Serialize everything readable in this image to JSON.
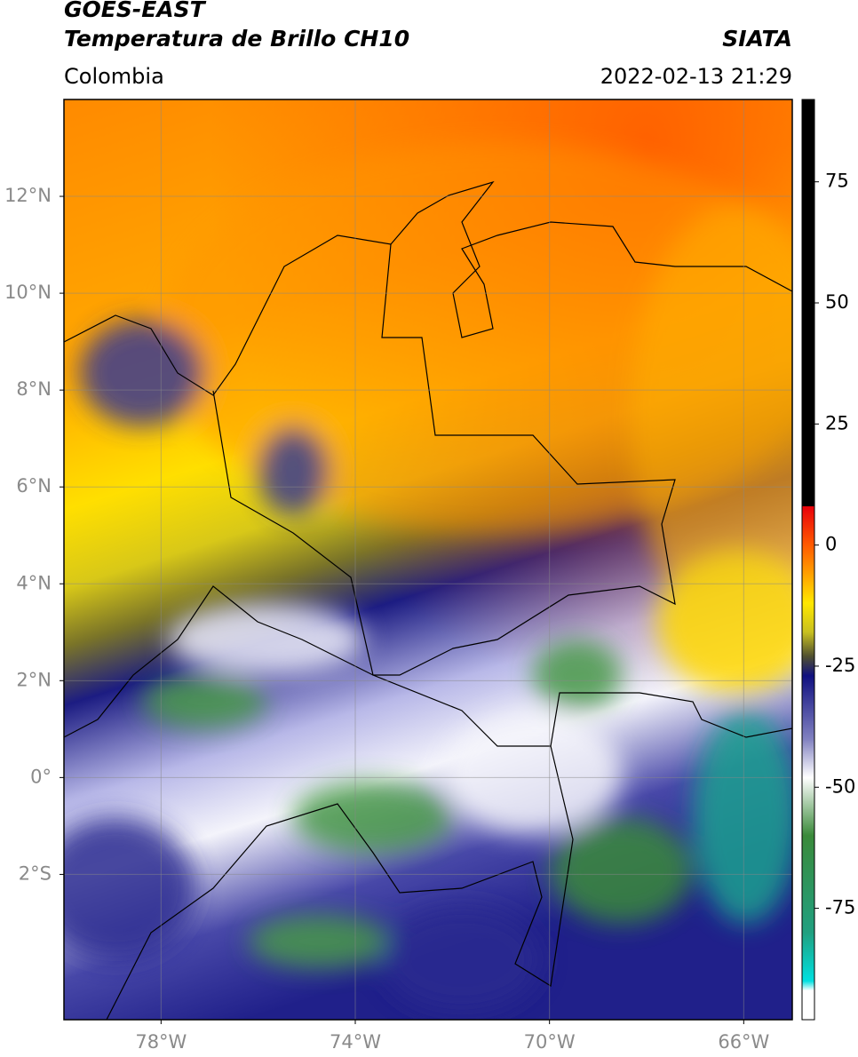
{
  "header": {
    "title": "GOES-EAST",
    "subtitle": "Temperatura de Brillo CH10",
    "source": "SIATA",
    "region": "Colombia",
    "datetime": "2022-02-13 21:29"
  },
  "map": {
    "xlim": [
      -80,
      -65
    ],
    "ylim": [
      -5,
      14
    ],
    "grid": true,
    "yticks": [
      {
        "value": 12,
        "label": "12°N"
      },
      {
        "value": 10,
        "label": "10°N"
      },
      {
        "value": 8,
        "label": "8°N"
      },
      {
        "value": 6,
        "label": "6°N"
      },
      {
        "value": 4,
        "label": "4°N"
      },
      {
        "value": 2,
        "label": "2°N"
      },
      {
        "value": 0,
        "label": "0°"
      },
      {
        "value": -2,
        "label": "2°S"
      }
    ],
    "xticks": [
      {
        "value": -78,
        "label": "78°W"
      },
      {
        "value": -74,
        "label": "74°W"
      },
      {
        "value": -70,
        "label": "70°W"
      },
      {
        "value": -66,
        "label": "66°W"
      }
    ]
  },
  "colorbar": {
    "lim": [
      -98,
      92
    ],
    "ticks": [
      75,
      50,
      25,
      0,
      -25,
      -50,
      -75
    ],
    "colormap": [
      {
        "value": 92,
        "color": "#000000"
      },
      {
        "value": 8,
        "color": "#000000"
      },
      {
        "value": 8,
        "color": "#e8000a"
      },
      {
        "value": 0,
        "color": "#ff5a00"
      },
      {
        "value": -12,
        "color": "#ffe800"
      },
      {
        "value": -18,
        "color": "#c8c020"
      },
      {
        "value": -23,
        "color": "#505030"
      },
      {
        "value": -27,
        "color": "#101080"
      },
      {
        "value": -40,
        "color": "#8080c0"
      },
      {
        "value": -48,
        "color": "#ffffff"
      },
      {
        "value": -60,
        "color": "#3a8a3a"
      },
      {
        "value": -80,
        "color": "#20a080"
      },
      {
        "value": -90,
        "color": "#00e0e0"
      },
      {
        "value": -92,
        "color": "#ffffff"
      },
      {
        "value": -98,
        "color": "#ffffff"
      }
    ]
  }
}
